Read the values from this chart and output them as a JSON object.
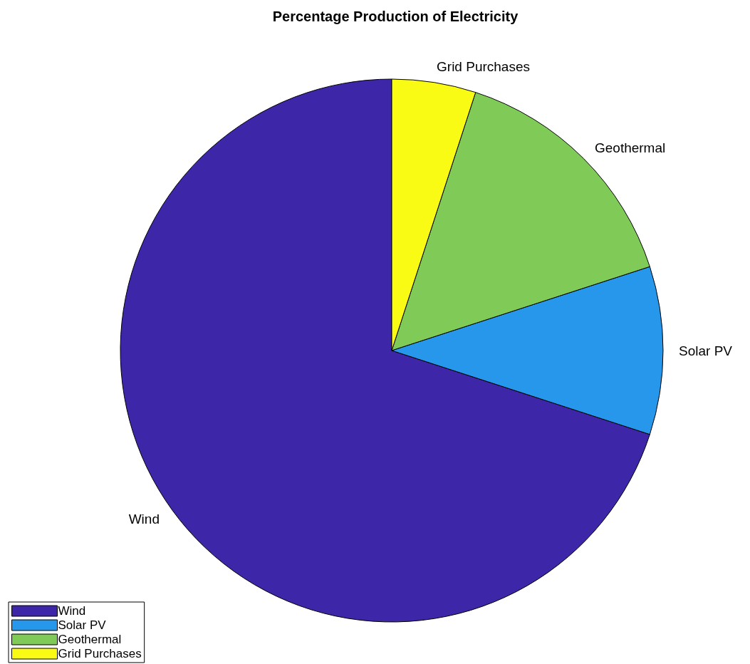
{
  "chart_data": {
    "type": "pie",
    "title": "Percentage Production of Electricity",
    "categories": [
      "Wind",
      "Solar PV",
      "Geothermal",
      "Grid Purchases"
    ],
    "values": [
      70,
      10,
      15,
      5
    ],
    "colors": [
      "#3e26a8",
      "#2797eb",
      "#80cb58",
      "#f9fb15"
    ],
    "legend": "bottom left"
  }
}
